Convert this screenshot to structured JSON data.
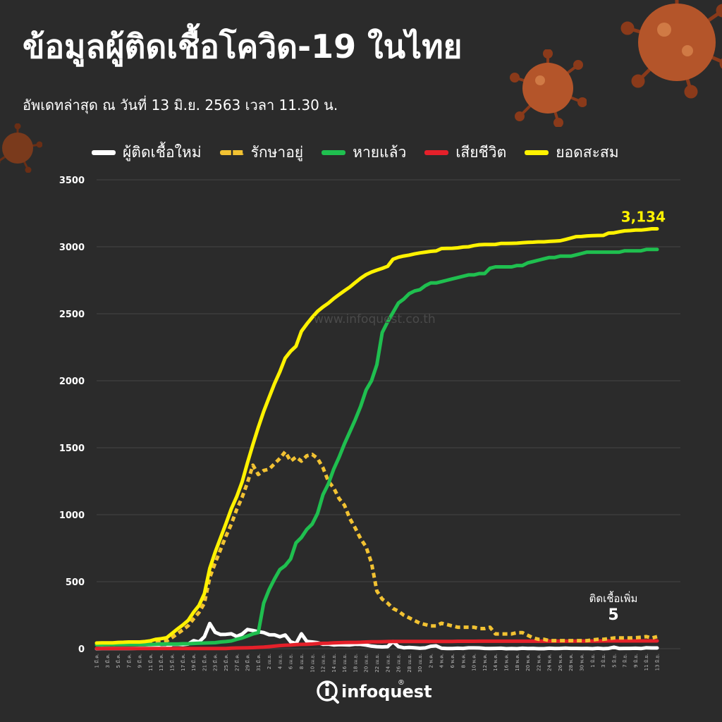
{
  "page": {
    "title": "ข้อมูลผู้ติดเชื้อโควิด-19 ในไทย",
    "subtitle": "อัพเดทล่าสุด ณ วันที่ 13 มิ.ย. 2563 เวลา 11.30 น.",
    "watermark": "www.infoquest.co.th",
    "logo_text": "infoquest",
    "logo_mark": "®",
    "colors": {
      "background": "#2b2b2b",
      "new": "#ffffff",
      "active": "#f2c232",
      "recovered": "#1fbf4f",
      "deaths": "#e5202a",
      "cumulative": "#fff200"
    }
  },
  "chart_data": {
    "type": "line",
    "categories": [
      "1 มี.ค.",
      "2 มี.ค.",
      "3 มี.ค.",
      "4 มี.ค.",
      "5 มี.ค.",
      "6 มี.ค.",
      "7 มี.ค.",
      "8 มี.ค.",
      "9 มี.ค.",
      "10 มี.ค.",
      "11 มี.ค.",
      "12 มี.ค.",
      "13 มี.ค.",
      "14 มี.ค.",
      "15 มี.ค.",
      "16 มี.ค.",
      "17 มี.ค.",
      "18 มี.ค.",
      "19 มี.ค.",
      "20 มี.ค.",
      "21 มี.ค.",
      "22 มี.ค.",
      "23 มี.ค.",
      "24 มี.ค.",
      "25 มี.ค.",
      "26 มี.ค.",
      "27 มี.ค.",
      "28 มี.ค.",
      "29 มี.ค.",
      "30 มี.ค.",
      "31 มี.ค.",
      "1 เม.ย.",
      "2 เม.ย.",
      "3 เม.ย.",
      "4 เม.ย.",
      "5 เม.ย.",
      "6 เม.ย.",
      "7 เม.ย.",
      "8 เม.ย.",
      "9 เม.ย.",
      "10 เม.ย.",
      "11 เม.ย.",
      "12 เม.ย.",
      "13 เม.ย.",
      "14 เม.ย.",
      "15 เม.ย.",
      "16 เม.ย.",
      "17 เม.ย.",
      "18 เม.ย.",
      "19 เม.ย.",
      "20 เม.ย.",
      "21 เม.ย.",
      "22 เม.ย.",
      "23 เม.ย.",
      "24 เม.ย.",
      "25 เม.ย.",
      "26 เม.ย.",
      "27 เม.ย.",
      "28 เม.ย.",
      "29 เม.ย.",
      "30 เม.ย.",
      "1 พ.ค.",
      "2 พ.ค.",
      "3 พ.ค.",
      "4 พ.ค.",
      "5 พ.ค.",
      "6 พ.ค.",
      "7 พ.ค.",
      "8 พ.ค.",
      "9 พ.ค.",
      "10 พ.ค.",
      "11 พ.ค.",
      "12 พ.ค.",
      "13 พ.ค.",
      "14 พ.ค.",
      "15 พ.ค.",
      "16 พ.ค.",
      "17 พ.ค.",
      "18 พ.ค.",
      "19 พ.ค.",
      "20 พ.ค.",
      "21 พ.ค.",
      "22 พ.ค.",
      "23 พ.ค.",
      "24 พ.ค.",
      "25 พ.ค.",
      "26 พ.ค.",
      "27 พ.ค.",
      "28 พ.ค.",
      "29 พ.ค.",
      "30 พ.ค.",
      "31 พ.ค.",
      "1 มิ.ย.",
      "2 มิ.ย.",
      "3 มิ.ย.",
      "4 มิ.ย.",
      "5 มิ.ย.",
      "6 มิ.ย.",
      "7 มิ.ย.",
      "8 มิ.ย.",
      "9 มิ.ย.",
      "10 มิ.ย.",
      "11 มิ.ย.",
      "12 มิ.ย.",
      "13 มิ.ย."
    ],
    "xtick_labels": [
      "1 มี.ค.",
      "3 มี.ค.",
      "5 มี.ค.",
      "7 มี.ค.",
      "9 มี.ค.",
      "11 มี.ค.",
      "13 มี.ค.",
      "15 มี.ค.",
      "17 มี.ค.",
      "19 มี.ค.",
      "21 มี.ค.",
      "23 มี.ค.",
      "25 มี.ค.",
      "27 มี.ค.",
      "29 มี.ค.",
      "31 มี.ค.",
      "2 เม.ย.",
      "4 เม.ย.",
      "6 เม.ย.",
      "8 เม.ย.",
      "10 เม.ย.",
      "12 เม.ย.",
      "14 เม.ย.",
      "16 เม.ย.",
      "18 เม.ย.",
      "20 เม.ย.",
      "22 เม.ย.",
      "24 เม.ย.",
      "26 เม.ย.",
      "28 เม.ย.",
      "30 เม.ย.",
      "2 พ.ค.",
      "4 พ.ค.",
      "6 พ.ค.",
      "8 พ.ค.",
      "10 พ.ค.",
      "12 พ.ค.",
      "14 พ.ค.",
      "16 พ.ค.",
      "18 พ.ค.",
      "20 พ.ค.",
      "22 พ.ค.",
      "24 พ.ค.",
      "26 พ.ค.",
      "28 พ.ค.",
      "30 พ.ค.",
      "1 มิ.ย.",
      "3 มิ.ย.",
      "5 มิ.ย.",
      "7 มิ.ย.",
      "9 มิ.ย.",
      "11 มิ.ย.",
      "13 มิ.ย."
    ],
    "yticks": [
      "0",
      "500",
      "1000",
      "1500",
      "2000",
      "2500",
      "3000",
      "3500"
    ],
    "ylim": [
      0,
      3500
    ],
    "grid": true,
    "legend": "top",
    "series": [
      {
        "key": "new",
        "name": "ผู้ติดเชื้อใหม่",
        "style": "solid",
        "color": "#ffffff",
        "values": [
          0,
          1,
          1,
          1,
          1,
          1,
          1,
          2,
          3,
          3,
          6,
          11,
          5,
          7,
          32,
          33,
          30,
          35,
          60,
          50,
          89,
          188,
          122,
          106,
          107,
          111,
          91,
          109,
          143,
          136,
          127,
          120,
          104,
          103,
          89,
          102,
          51,
          38,
          111,
          54,
          50,
          45,
          33,
          34,
          28,
          30,
          29,
          28,
          33,
          32,
          27,
          19,
          15,
          13,
          15,
          53,
          15,
          7,
          9,
          7,
          3,
          6,
          18,
          21,
          3,
          1,
          1,
          3,
          2,
          6,
          6,
          5,
          2,
          1,
          2,
          3,
          0,
          1,
          0,
          3,
          1,
          2,
          0,
          0,
          3,
          1,
          2,
          4,
          2,
          2,
          1,
          2,
          0,
          3,
          0,
          2,
          11,
          1,
          2,
          2,
          3,
          1,
          7,
          5,
          5
        ]
      },
      {
        "key": "active",
        "name": "รักษาอยู่",
        "style": "dashed",
        "color": "#f2c232",
        "values": [
          30,
          30,
          31,
          31,
          32,
          32,
          33,
          34,
          35,
          36,
          40,
          49,
          52,
          57,
          83,
          112,
          140,
          172,
          223,
          270,
          340,
          530,
          640,
          740,
          840,
          930,
          1040,
          1130,
          1240,
          1370,
          1300,
          1330,
          1340,
          1380,
          1420,
          1470,
          1400,
          1430,
          1400,
          1440,
          1450,
          1420,
          1350,
          1250,
          1200,
          1120,
          1070,
          970,
          900,
          820,
          760,
          640,
          430,
          370,
          340,
          300,
          280,
          250,
          230,
          210,
          190,
          180,
          170,
          170,
          190,
          180,
          170,
          160,
          160,
          160,
          160,
          150,
          150,
          160,
          110,
          110,
          110,
          110,
          120,
          120,
          100,
          80,
          70,
          70,
          60,
          60,
          60,
          60,
          60,
          60,
          60,
          60,
          65,
          70,
          70,
          75,
          80,
          80,
          80,
          80,
          82,
          85,
          90,
          80,
          90
        ]
      },
      {
        "key": "recovered",
        "name": "หายแล้ว",
        "style": "solid",
        "color": "#1fbf4f",
        "values": [
          29,
          29,
          31,
          31,
          31,
          31,
          31,
          31,
          31,
          31,
          31,
          33,
          35,
          35,
          35,
          35,
          37,
          37,
          39,
          41,
          42,
          43,
          45,
          50,
          53,
          58,
          70,
          80,
          95,
          110,
          120,
          340,
          440,
          520,
          590,
          620,
          670,
          790,
          830,
          890,
          930,
          1010,
          1150,
          1230,
          1340,
          1430,
          1530,
          1620,
          1710,
          1810,
          1930,
          2000,
          2120,
          2360,
          2440,
          2510,
          2580,
          2610,
          2650,
          2670,
          2680,
          2710,
          2730,
          2730,
          2740,
          2750,
          2760,
          2770,
          2780,
          2790,
          2790,
          2800,
          2800,
          2840,
          2850,
          2850,
          2850,
          2850,
          2860,
          2860,
          2880,
          2890,
          2900,
          2910,
          2920,
          2920,
          2930,
          2930,
          2930,
          2940,
          2950,
          2960,
          2960,
          2960,
          2960,
          2960,
          2960,
          2960,
          2970,
          2970,
          2970,
          2970,
          2980,
          2980,
          2980
        ]
      },
      {
        "key": "deaths",
        "name": "เสียชีวิต",
        "style": "solid",
        "color": "#e5202a",
        "values": [
          1,
          1,
          1,
          1,
          1,
          1,
          1,
          1,
          1,
          1,
          1,
          1,
          1,
          1,
          1,
          1,
          1,
          1,
          1,
          1,
          1,
          1,
          1,
          1,
          1,
          4,
          5,
          6,
          7,
          8,
          10,
          12,
          15,
          19,
          23,
          26,
          27,
          30,
          32,
          33,
          35,
          38,
          40,
          41,
          43,
          45,
          46,
          47,
          47,
          48,
          50,
          51,
          51,
          52,
          53,
          54,
          54,
          54,
          54,
          54,
          54,
          54,
          54,
          54,
          54,
          54,
          54,
          55,
          55,
          55,
          55,
          56,
          56,
          56,
          56,
          56,
          56,
          56,
          56,
          56,
          56,
          56,
          56,
          56,
          56,
          56,
          56,
          56,
          56,
          57,
          57,
          57,
          57,
          57,
          58,
          58,
          58,
          58,
          58,
          58,
          58,
          58,
          58,
          58,
          58
        ]
      },
      {
        "key": "cumulative",
        "name": "ยอดสะสม",
        "style": "solid",
        "color": "#fff200",
        "values": [
          42,
          43,
          43,
          43,
          47,
          48,
          50,
          50,
          50,
          53,
          59,
          70,
          75,
          82,
          114,
          147,
          177,
          212,
          272,
          322,
          411,
          599,
          721,
          827,
          934,
          1045,
          1136,
          1245,
          1388,
          1524,
          1651,
          1771,
          1875,
          1978,
          2067,
          2169,
          2220,
          2258,
          2369,
          2423,
          2473,
          2518,
          2551,
          2579,
          2613,
          2643,
          2672,
          2700,
          2733,
          2765,
          2792,
          2811,
          2826,
          2839,
          2854,
          2907,
          2922,
          2931,
          2938,
          2947,
          2954,
          2960,
          2966,
          2969,
          2987,
          2988,
          2989,
          2992,
          2998,
          3000,
          3009,
          3015,
          3017,
          3017,
          3018,
          3025,
          3025,
          3026,
          3027,
          3030,
          3033,
          3034,
          3037,
          3037,
          3040,
          3042,
          3045,
          3054,
          3065,
          3076,
          3077,
          3081,
          3083,
          3084,
          3085,
          3102,
          3104,
          3112,
          3119,
          3121,
          3125,
          3125,
          3129,
          3134,
          3134
        ]
      }
    ],
    "annotations": [
      {
        "target": "cumulative",
        "text": "3,134"
      },
      {
        "target": "new",
        "label": "ติดเชื้อเพิ่ม",
        "text": "5"
      }
    ]
  }
}
